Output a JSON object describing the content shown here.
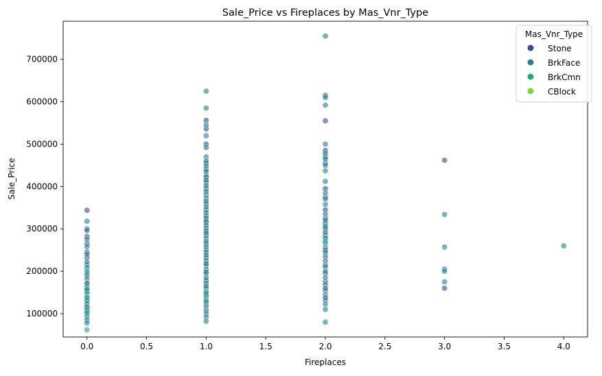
{
  "chart_data": {
    "type": "scatter",
    "title": "Sale_Price vs Fireplaces by Mas_Vnr_Type",
    "xlabel": "Fireplaces",
    "ylabel": "Sale_Price",
    "xlim": [
      -0.2,
      4.2
    ],
    "ylim": [
      45000,
      790000
    ],
    "x_ticks": [
      0.0,
      0.5,
      1.0,
      1.5,
      2.0,
      2.5,
      3.0,
      3.5,
      4.0
    ],
    "x_tick_labels": [
      "0.0",
      "0.5",
      "1.0",
      "1.5",
      "2.0",
      "2.5",
      "3.0",
      "3.5",
      "4.0"
    ],
    "y_ticks": [
      100000,
      200000,
      300000,
      400000,
      500000,
      600000,
      700000
    ],
    "y_tick_labels": [
      "100000",
      "200000",
      "300000",
      "400000",
      "500000",
      "600000",
      "700000"
    ],
    "grid": false,
    "legend": {
      "title": "Mas_Vnr_Type",
      "placement": "top-right"
    },
    "series": [
      {
        "name": "Stone",
        "color": "#3b4a8a",
        "points": [
          [
            0,
            344000
          ],
          [
            0,
            300000
          ],
          [
            0,
            282000
          ],
          [
            0,
            265000
          ],
          [
            0,
            245000
          ],
          [
            0,
            232000
          ],
          [
            0,
            215000
          ],
          [
            0,
            190000
          ],
          [
            0,
            170000
          ],
          [
            0,
            152000
          ],
          [
            0,
            130000
          ],
          [
            0,
            112000
          ],
          [
            1,
            556000
          ],
          [
            1,
            536000
          ],
          [
            1,
            500000
          ],
          [
            1,
            455000
          ],
          [
            1,
            440000
          ],
          [
            1,
            425000
          ],
          [
            1,
            410000
          ],
          [
            1,
            395000
          ],
          [
            1,
            380000
          ],
          [
            1,
            360000
          ],
          [
            1,
            345000
          ],
          [
            1,
            330000
          ],
          [
            1,
            315000
          ],
          [
            1,
            300000
          ],
          [
            1,
            285000
          ],
          [
            1,
            265000
          ],
          [
            1,
            250000
          ],
          [
            1,
            232000
          ],
          [
            1,
            215000
          ],
          [
            1,
            195000
          ],
          [
            1,
            178000
          ],
          [
            1,
            160000
          ],
          [
            1,
            140000
          ],
          [
            1,
            125000
          ],
          [
            1,
            108000
          ],
          [
            2,
            615000
          ],
          [
            2,
            555000
          ],
          [
            2,
            485000
          ],
          [
            2,
            470000
          ],
          [
            2,
            455000
          ],
          [
            2,
            395000
          ],
          [
            2,
            375000
          ],
          [
            2,
            345000
          ],
          [
            2,
            325000
          ],
          [
            2,
            312000
          ],
          [
            2,
            300000
          ],
          [
            2,
            285000
          ],
          [
            2,
            255000
          ],
          [
            2,
            235000
          ],
          [
            2,
            215000
          ],
          [
            2,
            195000
          ],
          [
            2,
            175000
          ],
          [
            2,
            155000
          ],
          [
            2,
            132000
          ],
          [
            3,
            462000
          ],
          [
            3,
            160000
          ]
        ]
      },
      {
        "name": "BrkFace",
        "color": "#277f8e",
        "points": [
          [
            0,
            318000
          ],
          [
            0,
            296000
          ],
          [
            0,
            275000
          ],
          [
            0,
            258000
          ],
          [
            0,
            240000
          ],
          [
            0,
            222000
          ],
          [
            0,
            208000
          ],
          [
            0,
            195000
          ],
          [
            0,
            182000
          ],
          [
            0,
            172000
          ],
          [
            0,
            163000
          ],
          [
            0,
            155000
          ],
          [
            0,
            147000
          ],
          [
            0,
            139000
          ],
          [
            0,
            131000
          ],
          [
            0,
            123000
          ],
          [
            0,
            116000
          ],
          [
            0,
            108000
          ],
          [
            0,
            100000
          ],
          [
            0,
            93000
          ],
          [
            0,
            85000
          ],
          [
            0,
            78000
          ],
          [
            1,
            625000
          ],
          [
            1,
            585000
          ],
          [
            1,
            545000
          ],
          [
            1,
            520000
          ],
          [
            1,
            492000
          ],
          [
            1,
            470000
          ],
          [
            1,
            460000
          ],
          [
            1,
            448000
          ],
          [
            1,
            435000
          ],
          [
            1,
            422000
          ],
          [
            1,
            415000
          ],
          [
            1,
            402000
          ],
          [
            1,
            388000
          ],
          [
            1,
            372000
          ],
          [
            1,
            365000
          ],
          [
            1,
            352000
          ],
          [
            1,
            338000
          ],
          [
            1,
            325000
          ],
          [
            1,
            318000
          ],
          [
            1,
            308000
          ],
          [
            1,
            295000
          ],
          [
            1,
            290000
          ],
          [
            1,
            278000
          ],
          [
            1,
            270000
          ],
          [
            1,
            258000
          ],
          [
            1,
            245000
          ],
          [
            1,
            238000
          ],
          [
            1,
            225000
          ],
          [
            1,
            218000
          ],
          [
            1,
            205000
          ],
          [
            1,
            198000
          ],
          [
            1,
            185000
          ],
          [
            1,
            172000
          ],
          [
            1,
            165000
          ],
          [
            1,
            150000
          ],
          [
            1,
            145000
          ],
          [
            1,
            132000
          ],
          [
            1,
            118000
          ],
          [
            1,
            100000
          ],
          [
            1,
            92000
          ],
          [
            1,
            82000
          ],
          [
            2,
            755000
          ],
          [
            2,
            610000
          ],
          [
            2,
            592000
          ],
          [
            2,
            500000
          ],
          [
            2,
            478000
          ],
          [
            2,
            465000
          ],
          [
            2,
            450000
          ],
          [
            2,
            437000
          ],
          [
            2,
            412000
          ],
          [
            2,
            385000
          ],
          [
            2,
            370000
          ],
          [
            2,
            358000
          ],
          [
            2,
            335000
          ],
          [
            2,
            320000
          ],
          [
            2,
            305000
          ],
          [
            2,
            292000
          ],
          [
            2,
            278000
          ],
          [
            2,
            265000
          ],
          [
            2,
            250000
          ],
          [
            2,
            245000
          ],
          [
            2,
            225000
          ],
          [
            2,
            210000
          ],
          [
            2,
            200000
          ],
          [
            2,
            185000
          ],
          [
            2,
            168000
          ],
          [
            2,
            160000
          ],
          [
            2,
            145000
          ],
          [
            2,
            138000
          ],
          [
            2,
            122000
          ],
          [
            2,
            110000
          ],
          [
            2,
            80000
          ],
          [
            3,
            334000
          ],
          [
            3,
            257000
          ],
          [
            3,
            205000
          ],
          [
            3,
            200000
          ],
          [
            3,
            175000
          ],
          [
            4,
            260000
          ]
        ]
      },
      {
        "name": "BrkCmn",
        "color": "#22a785",
        "points": [
          [
            0,
            200000
          ],
          [
            0,
            158000
          ],
          [
            0,
            138000
          ],
          [
            0,
            103000
          ],
          [
            0,
            62000
          ],
          [
            1,
            150000
          ],
          [
            1,
            128000
          ],
          [
            2,
            278000
          ],
          [
            2,
            270000
          ]
        ]
      },
      {
        "name": "CBlock",
        "color": "#7ad151",
        "points": []
      }
    ]
  }
}
